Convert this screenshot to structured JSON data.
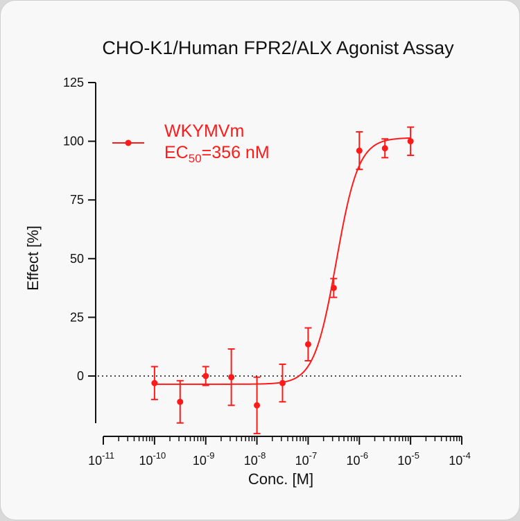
{
  "chart_data": {
    "type": "scatter",
    "title": "CHO-K1/Human FPR2/ALX Agonist Assay",
    "xlabel": "Conc. [M]",
    "ylabel": "Effect  [%]",
    "x_scale": "log",
    "xlim": [
      1e-11,
      0.0001
    ],
    "ylim": [
      -20,
      125
    ],
    "x_tick_bases": [
      "10",
      "10",
      "10",
      "10",
      "10",
      "10",
      "10",
      "10"
    ],
    "x_tick_exponents": [
      "-11",
      "-10",
      "-9",
      "-8",
      "-7",
      "-6",
      "-5",
      "-4"
    ],
    "x_tick_values": [
      1e-11,
      1e-10,
      1e-09,
      1e-08,
      1e-07,
      1e-06,
      1e-05,
      0.0001
    ],
    "y_ticks": [
      0,
      25,
      50,
      75,
      100,
      125
    ],
    "y_tick_labels": [
      "0",
      "25",
      "50",
      "75",
      "100",
      "125"
    ],
    "reference_line_y": 0,
    "legend": {
      "series_name": "WKYMVm",
      "ec_prefix": "EC",
      "ec_subscript": "50",
      "ec_value": "=356 nM",
      "placement": "top-left"
    },
    "color": "#ff1a1a",
    "series": [
      {
        "name": "WKYMVm",
        "x": [
          1e-10,
          3.16e-10,
          1e-09,
          3.16e-09,
          1e-08,
          3.16e-08,
          1e-07,
          3.16e-07,
          1e-06,
          3.16e-06,
          1e-05
        ],
        "y": [
          -3,
          -11,
          0,
          -0.5,
          -12.5,
          -3,
          13.5,
          37.5,
          96,
          97,
          100
        ],
        "error": [
          7,
          9,
          4,
          12,
          12,
          8,
          7,
          4,
          8,
          4,
          6
        ]
      }
    ],
    "fit": {
      "model": "4PL",
      "bottom": -3.5,
      "top": 101.5,
      "ec50": 3.56e-07,
      "hill": 2.0
    }
  }
}
